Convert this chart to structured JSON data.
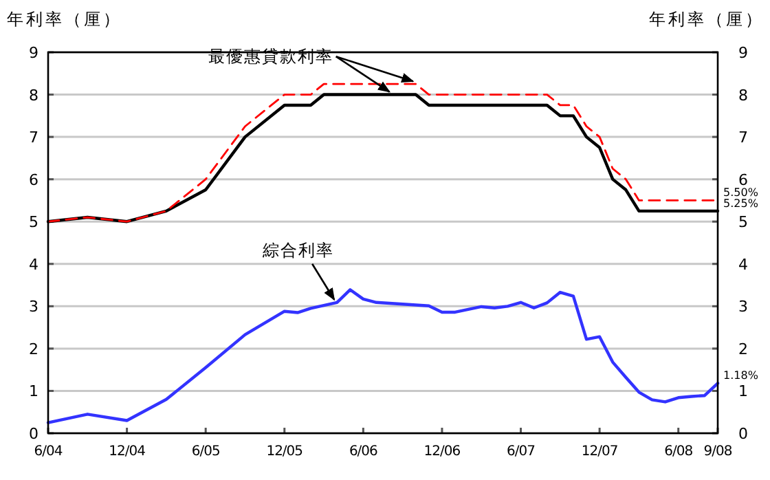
{
  "chart_data": {
    "type": "line",
    "ylabel": "年利率（厘）",
    "y2label": "年利率（厘）",
    "xlim": [
      "2004-06",
      "2008-09"
    ],
    "xticks": [
      {
        "value": "2004-06",
        "label": "6/04"
      },
      {
        "value": "2004-12",
        "label": "12/04"
      },
      {
        "value": "2005-06",
        "label": "6/05"
      },
      {
        "value": "2005-12",
        "label": "12/05"
      },
      {
        "value": "2006-06",
        "label": "6/06"
      },
      {
        "value": "2006-12",
        "label": "12/06"
      },
      {
        "value": "2007-06",
        "label": "6/07"
      },
      {
        "value": "2007-12",
        "label": "12/07"
      },
      {
        "value": "2008-06",
        "label": "6/08"
      },
      {
        "value": "2008-09",
        "label": "9/08"
      }
    ],
    "ylim": [
      0,
      9
    ],
    "yticks": [
      0,
      1,
      2,
      3,
      4,
      5,
      6,
      7,
      8,
      9
    ],
    "y2lim": [
      0,
      9
    ],
    "y2ticks": [
      0,
      1,
      2,
      3,
      4,
      5,
      6,
      7,
      8,
      9
    ],
    "grid": "y",
    "series": [
      {
        "color": "#000000",
        "line_style": "solid",
        "x": [
          "2004-06",
          "2004-09",
          "2004-12",
          "2005-03",
          "2005-06",
          "2005-09",
          "2005-12",
          "2006-02",
          "2006-03",
          "2006-10",
          "2006-11",
          "2007-08",
          "2007-09",
          "2007-10",
          "2007-11",
          "2007-12",
          "2008-01",
          "2008-02",
          "2008-03",
          "2008-09"
        ],
        "values": [
          5.0,
          5.1,
          5.0,
          5.25,
          5.75,
          7.0,
          7.75,
          7.75,
          8.0,
          8.0,
          7.75,
          7.75,
          7.5,
          7.5,
          7.0,
          6.75,
          6.0,
          5.75,
          5.25,
          5.25
        ],
        "value_labels": [
          null,
          null,
          null,
          null,
          null,
          null,
          null,
          null,
          null,
          null,
          null,
          null,
          null,
          null,
          null,
          null,
          null,
          null,
          null,
          "5.25%"
        ]
      },
      {
        "color": "#ff0000",
        "line_style": "dashed",
        "x": [
          "2004-06",
          "2004-09",
          "2004-12",
          "2005-03",
          "2005-06",
          "2005-09",
          "2005-12",
          "2006-02",
          "2006-03",
          "2006-10",
          "2006-11",
          "2007-08",
          "2007-09",
          "2007-10",
          "2007-11",
          "2007-12",
          "2008-01",
          "2008-02",
          "2008-03",
          "2008-09"
        ],
        "values": [
          5.0,
          5.1,
          5.0,
          5.25,
          6.0,
          7.25,
          8.0,
          8.0,
          8.25,
          8.25,
          8.0,
          8.0,
          7.75,
          7.75,
          7.25,
          7.0,
          6.25,
          6.0,
          5.5,
          5.5
        ],
        "value_labels": [
          null,
          null,
          null,
          null,
          null,
          null,
          null,
          null,
          null,
          null,
          null,
          null,
          null,
          null,
          null,
          null,
          null,
          null,
          null,
          "5.50%"
        ]
      },
      {
        "color": "#3333ff",
        "line_style": "solid",
        "x": [
          "2004-06",
          "2004-09",
          "2004-12",
          "2005-03",
          "2005-06",
          "2005-09",
          "2005-12",
          "2006-01",
          "2006-02",
          "2006-04",
          "2006-05",
          "2006-06",
          "2006-07",
          "2006-11",
          "2006-12",
          "2007-01",
          "2007-03",
          "2007-04",
          "2007-05",
          "2007-06",
          "2007-07",
          "2007-08",
          "2007-09",
          "2007-10",
          "2007-11",
          "2007-12",
          "2008-01",
          "2008-02",
          "2008-03",
          "2008-04",
          "2008-05",
          "2008-06",
          "2008-07",
          "2008-08",
          "2008-09"
        ],
        "values": [
          0.25,
          0.45,
          0.3,
          0.8,
          1.55,
          2.33,
          2.88,
          2.85,
          2.95,
          3.09,
          3.39,
          3.17,
          3.09,
          3.01,
          2.86,
          2.86,
          2.99,
          2.96,
          3.0,
          3.09,
          2.96,
          3.08,
          3.33,
          3.24,
          2.22,
          2.28,
          1.68,
          1.32,
          0.97,
          0.79,
          0.74,
          0.84,
          0.87,
          0.89,
          1.18
        ],
        "value_labels": [
          null,
          null,
          null,
          null,
          null,
          null,
          null,
          null,
          null,
          null,
          null,
          null,
          null,
          null,
          null,
          null,
          null,
          null,
          null,
          null,
          null,
          null,
          null,
          null,
          null,
          null,
          null,
          null,
          null,
          null,
          null,
          null,
          null,
          null,
          "1.18%"
        ]
      }
    ],
    "annotations": [
      {
        "text": "最優惠貸款利率",
        "x": "2006-10",
        "y": 8.25
      },
      {
        "text": "綜合利率",
        "x": "2006-04",
        "y": 3.09
      }
    ]
  }
}
